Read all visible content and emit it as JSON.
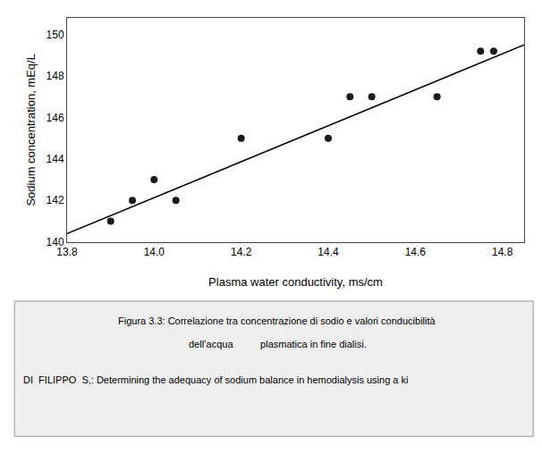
{
  "chart_data": {
    "type": "scatter",
    "xlabel": "Plasma water conductivity, ms/cm",
    "ylabel": "Sodium concentration, mEq/L",
    "series": [
      {
        "type": "scatter",
        "marker": "circle",
        "color": "#1a1a1a",
        "x": [
          13.9,
          13.95,
          14.0,
          14.05,
          14.2,
          14.4,
          14.45,
          14.5,
          14.65,
          14.75,
          14.78
        ],
        "values": [
          141.0,
          142.0,
          143.0,
          142.0,
          145.0,
          145.0,
          147.0,
          147.0,
          147.0,
          149.2,
          149.2
        ]
      },
      {
        "type": "line",
        "line_style": "solid",
        "color": "#000000",
        "x": [
          13.8,
          14.85
        ],
        "values": [
          140.4,
          149.5
        ]
      }
    ],
    "xlim": [
      13.8,
      14.85
    ],
    "ylim": [
      140,
      150.8
    ],
    "xticks": [
      13.8,
      {
        "value": 14.0,
        "label": "14.0"
      },
      14.2,
      14.4,
      14.6,
      14.8
    ],
    "yticks": [
      140,
      142,
      144,
      146,
      148,
      150
    ],
    "grid": false,
    "annotations": [
      "Figura 3.3: Correlazione tra concentrazione di sodio e valori conducibilità",
      "dell’acqua          plasmatica in fine dialisi.",
      "DI  FILIPPO  S,: Determining the adequacy of sodium balance in hemodialysis using a ki"
    ]
  }
}
